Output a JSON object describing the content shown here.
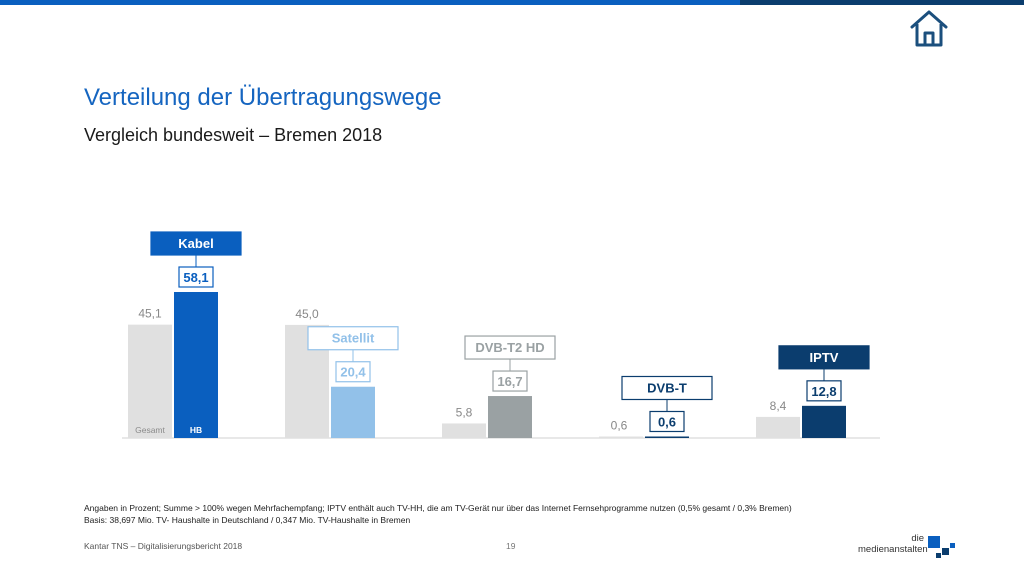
{
  "page": {
    "title": "Verteilung der Übertragungswege",
    "subtitle": "Vergleich bundesweit – Bremen 2018",
    "footnote_1": "Angaben in Prozent; Summe > 100% wegen Mehrfachempfang; IPTV enthält auch TV-HH, die am TV-Gerät nur über das Internet Fernsehprogramme nutzen (0,5% gesamt / 0,3% Bremen)",
    "footnote_2": "Basis: 38,697 Mio. TV- Haushalte in Deutschland / 0,347 Mio. TV-Haushalte in Bremen",
    "source": "Kantar TNS – Digitalisierungsbericht 2018",
    "page_number": "19",
    "brand_line_1": "die",
    "brand_line_2": "medienanstalten"
  },
  "icons": {
    "home": "home-icon",
    "brand": "medienanstalten-logo"
  },
  "chart_data": {
    "type": "bar",
    "categories": [
      "Kabel",
      "Satellit",
      "DVB-T2 HD",
      "DVB-T",
      "IPTV"
    ],
    "series": [
      {
        "name": "Gesamt",
        "values": [
          45.1,
          45.0,
          5.8,
          0.6,
          8.4
        ],
        "labels": [
          "45,1",
          "45,0",
          "5,8",
          "0,6",
          "8,4"
        ]
      },
      {
        "name": "HB",
        "values": [
          58.1,
          20.4,
          16.7,
          0.6,
          12.8
        ],
        "labels": [
          "58,1",
          "20,4",
          "16,7",
          "0,6",
          "12,8"
        ]
      }
    ],
    "colors": {
      "Gesamt": "#e0e0e0",
      "HB": [
        "#0a5fbf",
        "#92c1e9",
        "#9aa1a3",
        "#0b3d6e",
        "#0b3d6e"
      ]
    },
    "ylim": [
      0,
      60
    ],
    "legend": "inside-first-bars",
    "grid": false
  }
}
